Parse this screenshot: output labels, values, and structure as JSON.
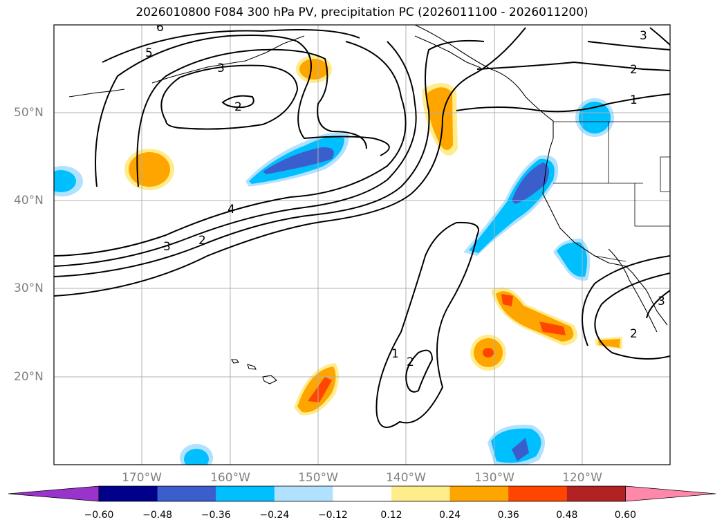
{
  "title": "2026010800 F084 300 hPa PV, precipitation PC (2026011100 - 2026011200)",
  "lat_labels": [
    "50°N",
    "40°N",
    "30°N",
    "20°N"
  ],
  "lon_labels": [
    "170°W",
    "160°W",
    "150°W",
    "140°W",
    "130°W",
    "120°W"
  ],
  "map_extent": {
    "lon_min": -180,
    "lon_max": -110,
    "lat_min": 10,
    "lat_max": 60
  },
  "colorbar": {
    "ticks": [
      "−0.60",
      "−0.48",
      "−0.36",
      "−0.24",
      "−0.12",
      "0.12",
      "0.24",
      "0.36",
      "0.48",
      "0.60"
    ],
    "colors": [
      "#9933cc",
      "#00008b",
      "#3a5fcd",
      "#00bfff",
      "#b0e2ff",
      "#ffffff",
      "#ffec8b",
      "#ffa500",
      "#ff4500",
      "#b22222",
      "#ff88aa"
    ]
  },
  "contour_labels": [
    {
      "text": "6"
    },
    {
      "text": "5"
    },
    {
      "text": "3"
    },
    {
      "text": "2"
    },
    {
      "text": "4"
    },
    {
      "text": "3"
    },
    {
      "text": "2"
    },
    {
      "text": "1"
    },
    {
      "text": "2"
    },
    {
      "text": "3"
    },
    {
      "text": "2"
    },
    {
      "text": "1"
    },
    {
      "text": "2"
    },
    {
      "text": "3"
    }
  ]
}
